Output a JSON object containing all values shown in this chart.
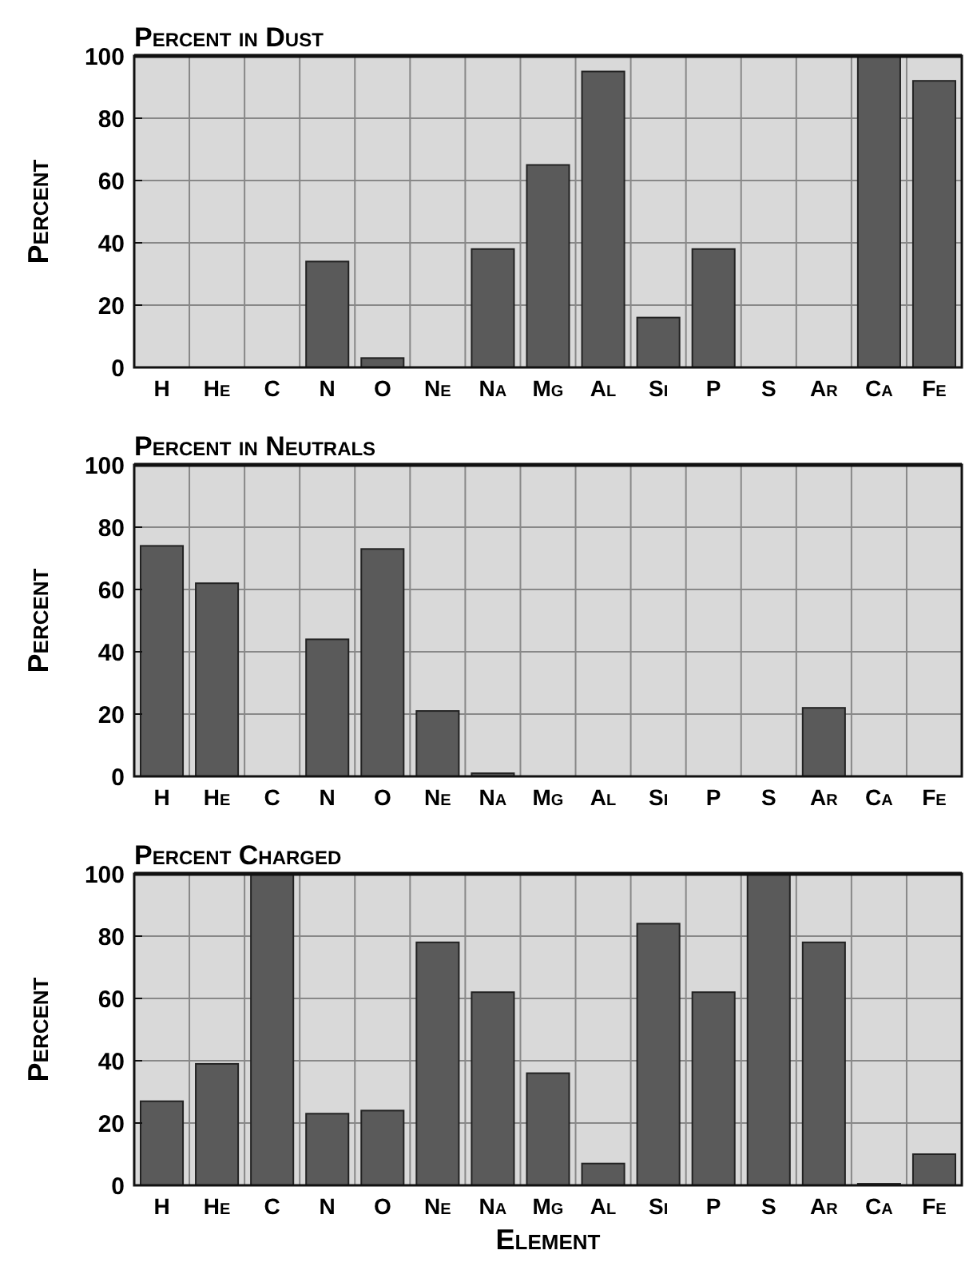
{
  "chart_data": [
    {
      "type": "bar",
      "title": "Percent in Dust",
      "ylabel": "Percent",
      "categories": [
        "H",
        "He",
        "C",
        "N",
        "O",
        "Ne",
        "Na",
        "Mg",
        "Al",
        "Si",
        "P",
        "S",
        "Ar",
        "Ca",
        "Fe"
      ],
      "values": [
        0,
        0,
        0,
        34,
        3,
        0,
        38,
        65,
        95,
        16,
        38,
        0,
        0,
        100,
        92
      ],
      "color": "#5a5a5a",
      "ylim": [
        0,
        100
      ],
      "yticks": [
        0,
        20,
        40,
        60,
        80,
        100
      ],
      "grid": true
    },
    {
      "type": "bar",
      "title": "Percent in Neutrals",
      "ylabel": "Percent",
      "categories": [
        "H",
        "He",
        "C",
        "N",
        "O",
        "Ne",
        "Na",
        "Mg",
        "Al",
        "Si",
        "P",
        "S",
        "Ar",
        "Ca",
        "Fe"
      ],
      "values": [
        74,
        62,
        0,
        44,
        73,
        21,
        1,
        0,
        0,
        0,
        0,
        0,
        22,
        0,
        0
      ],
      "color": "#5a5a5a",
      "ylim": [
        0,
        100
      ],
      "yticks": [
        0,
        20,
        40,
        60,
        80,
        100
      ],
      "grid": true
    },
    {
      "type": "bar",
      "title": "Percent Charged",
      "xlabel": "Element",
      "ylabel": "Percent",
      "categories": [
        "H",
        "He",
        "C",
        "N",
        "O",
        "Ne",
        "Na",
        "Mg",
        "Al",
        "Si",
        "P",
        "S",
        "Ar",
        "Ca",
        "Fe"
      ],
      "values": [
        27,
        39,
        100,
        23,
        24,
        78,
        62,
        36,
        7,
        84,
        62,
        100,
        78,
        0.5,
        10
      ],
      "color": "#5a5a5a",
      "ylim": [
        0,
        100
      ],
      "yticks": [
        0,
        20,
        40,
        60,
        80,
        100
      ],
      "grid": true
    }
  ]
}
